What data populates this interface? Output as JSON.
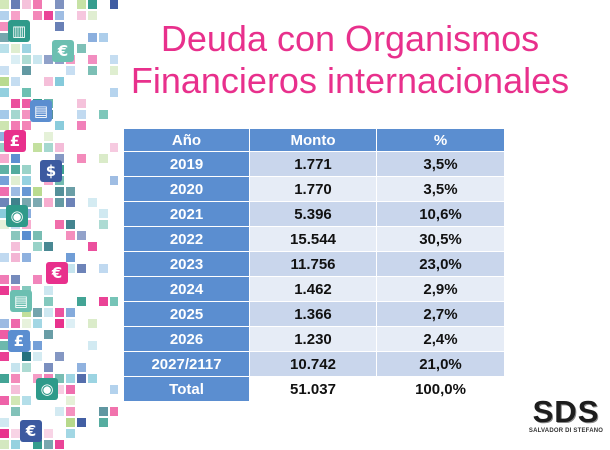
{
  "title": {
    "line1": "Deuda con Organismos",
    "line2": "Financieros internacionales"
  },
  "table": {
    "headers": [
      "Año",
      "Monto",
      "%"
    ],
    "rows": [
      {
        "year": "2019",
        "amount": "1.771",
        "pct": "3,5%"
      },
      {
        "year": "2020",
        "amount": "1.770",
        "pct": "3,5%"
      },
      {
        "year": "2021",
        "amount": "5.396",
        "pct": "10,6%"
      },
      {
        "year": "2022",
        "amount": "15.544",
        "pct": "30,5%"
      },
      {
        "year": "2023",
        "amount": "11.756",
        "pct": "23,0%"
      },
      {
        "year": "2024",
        "amount": "1.462",
        "pct": "2,9%"
      },
      {
        "year": "2025",
        "amount": "1.366",
        "pct": "2,7%"
      },
      {
        "year": "2026",
        "amount": "1.230",
        "pct": "2,4%"
      },
      {
        "year": "2027/2117",
        "amount": "10.742",
        "pct": "21,0%"
      },
      {
        "year": "Total",
        "amount": "51.037",
        "pct": "100,0%"
      }
    ]
  },
  "logo": {
    "mark": "SDS",
    "subtitle": "SALVADOR DI STEFANO"
  },
  "decor": {
    "mosaic_icons": [
      "chart-icon",
      "euro-icon",
      "money-icon",
      "pound-icon",
      "dollar-icon",
      "hand-coin-icon",
      "euro-icon",
      "money-icon",
      "pound-icon",
      "hand-coin-icon",
      "euro-icon"
    ]
  },
  "colors": {
    "title": "#e8308c",
    "header": "#5b8ed0",
    "row_dark": "#c9d6ec",
    "row_light": "#e6ecf6"
  }
}
